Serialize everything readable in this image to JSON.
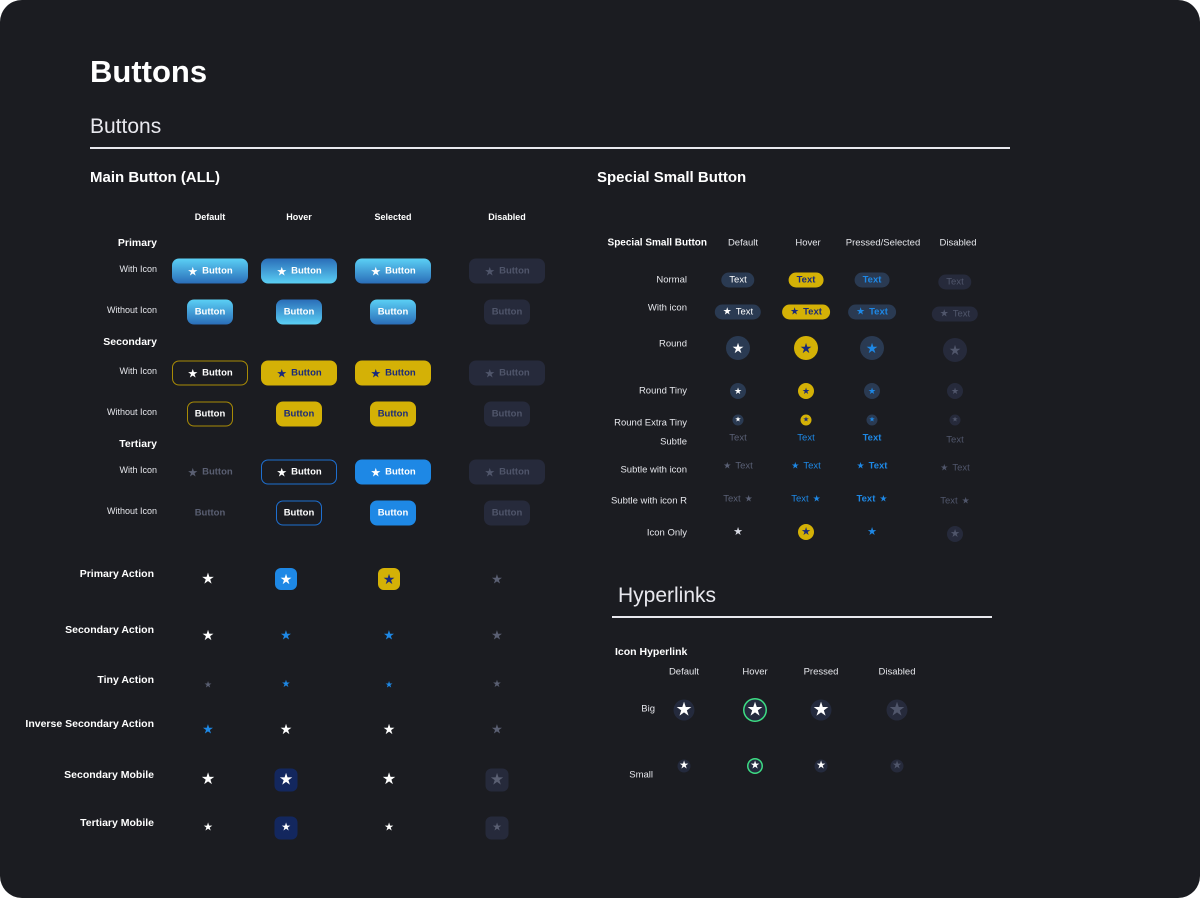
{
  "page": {
    "title": "Buttons",
    "subtitle": "Buttons"
  },
  "main": {
    "title": "Main Button (ALL)",
    "columns": [
      "Default",
      "Hover",
      "Selected",
      "Disabled"
    ],
    "groups": [
      {
        "label": "Primary",
        "variant": "primary",
        "rows": [
          {
            "label": "With Icon",
            "icon": true,
            "text": "Button"
          },
          {
            "label": "Without Icon",
            "icon": false,
            "text": "Button"
          }
        ]
      },
      {
        "label": "Secondary",
        "variant": "secondary",
        "rows": [
          {
            "label": "With Icon",
            "icon": true,
            "text": "Button"
          },
          {
            "label": "Without Icon",
            "icon": false,
            "text": "Button"
          }
        ]
      },
      {
        "label": "Tertiary",
        "variant": "tertiary",
        "rows": [
          {
            "label": "With Icon",
            "icon": true,
            "text": "Button"
          },
          {
            "label": "Without Icon",
            "icon": false,
            "text": "Button"
          }
        ]
      }
    ],
    "actions": [
      {
        "label": "Primary Action",
        "icon": "star-icon"
      },
      {
        "label": "Secondary Action",
        "icon": "star-icon"
      },
      {
        "label": "Tiny  Action",
        "icon": "star-icon"
      },
      {
        "label": "Inverse Secondary Action",
        "icon": "star-icon"
      },
      {
        "label": "Secondary Mobile",
        "icon": "star-icon"
      },
      {
        "label": "Tertiary Mobile",
        "icon": "star-icon"
      }
    ]
  },
  "special": {
    "title": "Special Small Button",
    "corner_label": "Special Small Button",
    "columns": [
      "Default",
      "Hover",
      "Pressed/Selected",
      "Disabled"
    ],
    "rows": [
      {
        "label": "Normal",
        "text": "Text"
      },
      {
        "label": "With icon",
        "text": "Text"
      },
      {
        "label": "Round"
      },
      {
        "label": "Round Tiny"
      },
      {
        "label": "Round Extra Tiny"
      },
      {
        "label": "Subtle",
        "text": "Text"
      },
      {
        "label": "Subtle with icon",
        "text": "Text"
      },
      {
        "label": "Subtle with icon R",
        "text": "Text"
      },
      {
        "label": "Icon Only"
      }
    ]
  },
  "hyperlinks": {
    "title": "Hyperlinks",
    "subtitle": "Icon Hyperlink",
    "columns": [
      "Default",
      "Hover",
      "Pressed",
      "Disabled"
    ],
    "rows": [
      {
        "label": "Big"
      },
      {
        "label": "Small"
      }
    ]
  },
  "colors": {
    "background": "#1b1c21",
    "blue": "#1e88e5",
    "gold": "#d4b106",
    "navy": "#1a2a7a",
    "disabled_bg": "#262a3b",
    "disabled_fg": "#50566b",
    "chip": "#2a3a52",
    "green": "#3ddc84"
  }
}
